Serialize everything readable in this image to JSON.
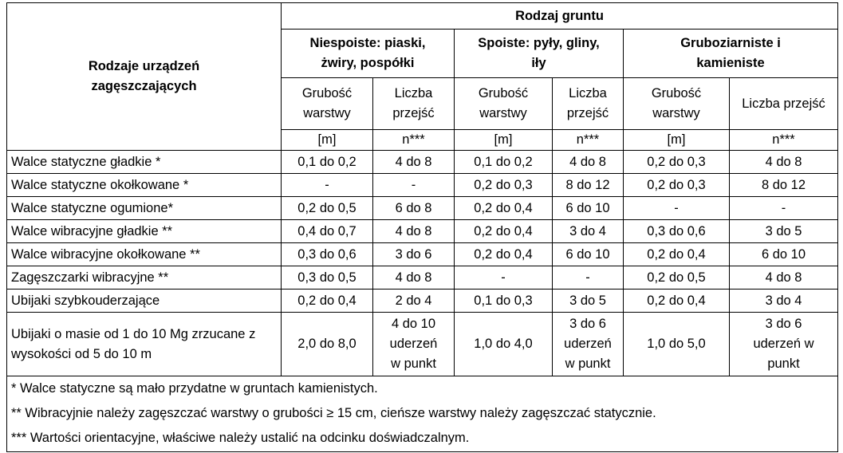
{
  "table": {
    "header": {
      "row_label": "Rodzaje urządzeń zagęszczających",
      "group": "Rodzaj gruntu",
      "soil_types": [
        "Niespoiste: piaski, żwiry, pospółki",
        "Spoiste: pyły, gliny, iły",
        "Gruboziarniste i kamieniste"
      ],
      "subcolumns": [
        {
          "label": "Grubość warstwy",
          "unit": "[m]"
        },
        {
          "label": "Liczba przejść",
          "unit": "n***"
        },
        {
          "label": "Grubość warstwy",
          "unit": "[m]"
        },
        {
          "label": "Liczba przejść",
          "unit": "n***"
        },
        {
          "label": "Grubość warstwy",
          "unit": "[m]"
        },
        {
          "label": "Liczba przejść",
          "unit": "n***"
        }
      ]
    },
    "rows": [
      [
        "Walce statyczne gładkie *",
        "0,1 do 0,2",
        "4 do 8",
        "0,1 do 0,2",
        "4 do 8",
        "0,2 do 0,3",
        "4 do 8"
      ],
      [
        "Walce statyczne okołkowane *",
        "-",
        "-",
        "0,2 do 0,3",
        "8 do 12",
        "0,2 do 0,3",
        "8 do 12"
      ],
      [
        "Walce statyczne ogumione*",
        "0,2 do 0,5",
        "6 do 8",
        "0,2 do 0,4",
        "6 do 10",
        "-",
        "-"
      ],
      [
        "Walce wibracyjne gładkie **",
        "0,4 do 0,7",
        "4 do 8",
        "0,2 do 0,4",
        "3 do 4",
        "0,3 do 0,6",
        "3 do 5"
      ],
      [
        "Walce wibracyjne okołkowane **",
        "0,3 do 0,6",
        "3 do 6",
        "0,2 do 0,4",
        "6 do 10",
        "0,2 do 0,4",
        "6 do 10"
      ],
      [
        "Zagęszczarki wibracyjne **",
        "0,3 do 0,5",
        "4 do 8",
        "-",
        "-",
        "0,2 do 0,5",
        "4 do 8"
      ],
      [
        "Ubijaki szybkouderzające",
        "0,2 do 0,4",
        "2 do 4",
        "0,1 do 0,3",
        "3 do 5",
        "0,2 do 0,4",
        "3 do 4"
      ],
      [
        "Ubijaki o masie od 1 do 10 Mg zrzucane z wysokości od 5 do 10 m",
        "2,0 do 8,0",
        "4 do 10 uderzeń w punkt",
        "1,0 do 4,0",
        "3 do 6 uderzeń w punkt",
        "1,0 do 5,0",
        "3 do 6 uderzeń w punkt"
      ]
    ],
    "footnotes": [
      "* Walce statyczne są mało przydatne w gruntach kamienistych.",
      "** Wibracyjnie należy zagęszczać warstwy o grubości ≥ 15 cm, cieńsze warstwy należy zagęszczać statycznie.",
      "*** Wartości orientacyjne, właściwe należy ustalić na odcinku doświadczalnym."
    ]
  }
}
